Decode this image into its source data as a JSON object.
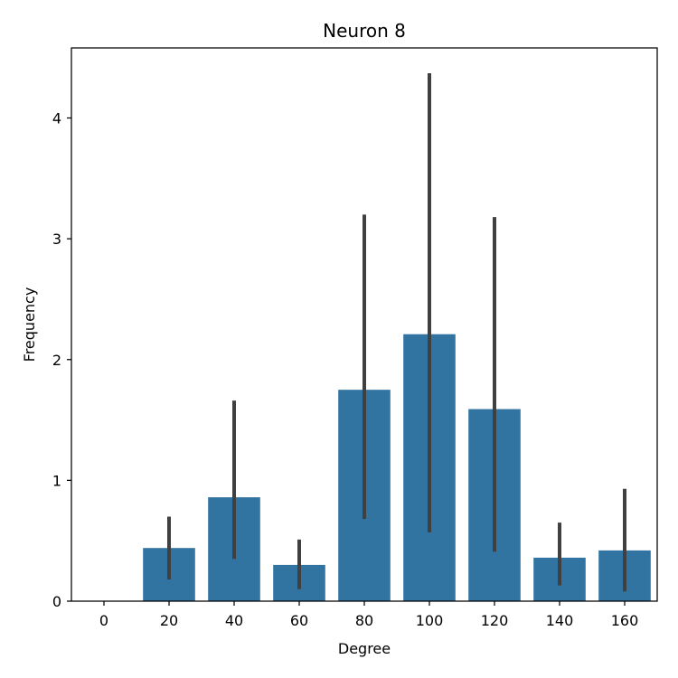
{
  "chart_data": {
    "type": "bar",
    "title": "Neuron 8",
    "xlabel": "Degree",
    "ylabel": "Frequency",
    "categories": [
      "0",
      "20",
      "40",
      "60",
      "80",
      "100",
      "120",
      "140",
      "160"
    ],
    "values": [
      0,
      0.44,
      0.86,
      0.3,
      1.75,
      2.21,
      1.59,
      0.36,
      0.42
    ],
    "error_low": [
      0,
      0.18,
      0.35,
      0.1,
      0.68,
      0.57,
      0.41,
      0.13,
      0.08
    ],
    "error_high": [
      0,
      0.7,
      1.66,
      0.51,
      3.2,
      4.37,
      3.18,
      0.65,
      0.93
    ],
    "ylim": [
      0,
      4.58
    ],
    "yticks": [
      0,
      1,
      2,
      3,
      4
    ],
    "bar_color": "#3274a1",
    "error_color": "#404040",
    "grid": false,
    "legend": null
  }
}
